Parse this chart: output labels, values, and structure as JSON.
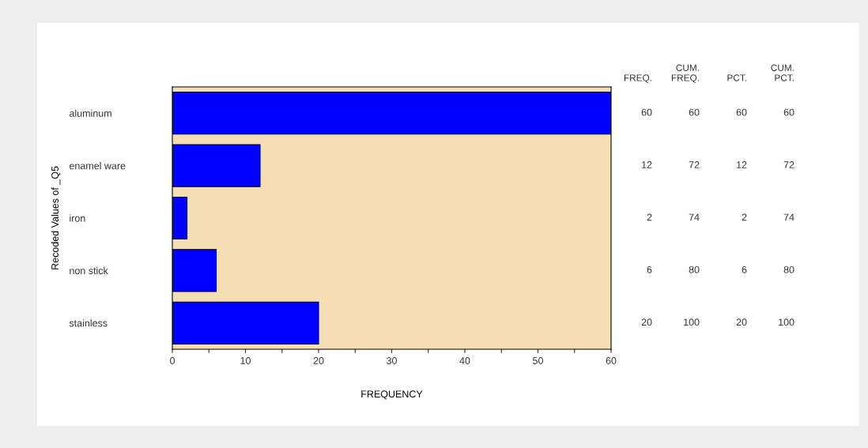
{
  "chart_data": {
    "type": "bar",
    "orientation": "horizontal",
    "categories": [
      "aluminum",
      "enamel ware",
      "iron",
      "non stick",
      "stainless"
    ],
    "values": [
      60,
      12,
      2,
      6,
      20
    ],
    "color": "#0000ff",
    "xlim": [
      0,
      60
    ],
    "xticks": [
      0,
      {
        "value": 5,
        "label": null
      },
      10,
      {
        "value": 15,
        "label": null
      },
      20,
      {
        "value": 25,
        "label": null
      },
      30,
      {
        "value": 35,
        "label": null
      },
      40,
      {
        "value": 45,
        "label": null
      },
      50,
      {
        "value": 55,
        "label": null
      },
      60
    ],
    "xlabel": "FREQUENCY",
    "ylabel": "Recoded Values of _Q5",
    "data_labels": true,
    "annotations": [
      "FREQ.",
      "CUM.\nFREQ.",
      "PCT.",
      "CUM.\nPCT.",
      "60",
      "72",
      "74",
      "80",
      "100",
      "60",
      "12",
      "2",
      "6",
      "20",
      "60",
      "72",
      "74",
      "80",
      "100"
    ]
  }
}
